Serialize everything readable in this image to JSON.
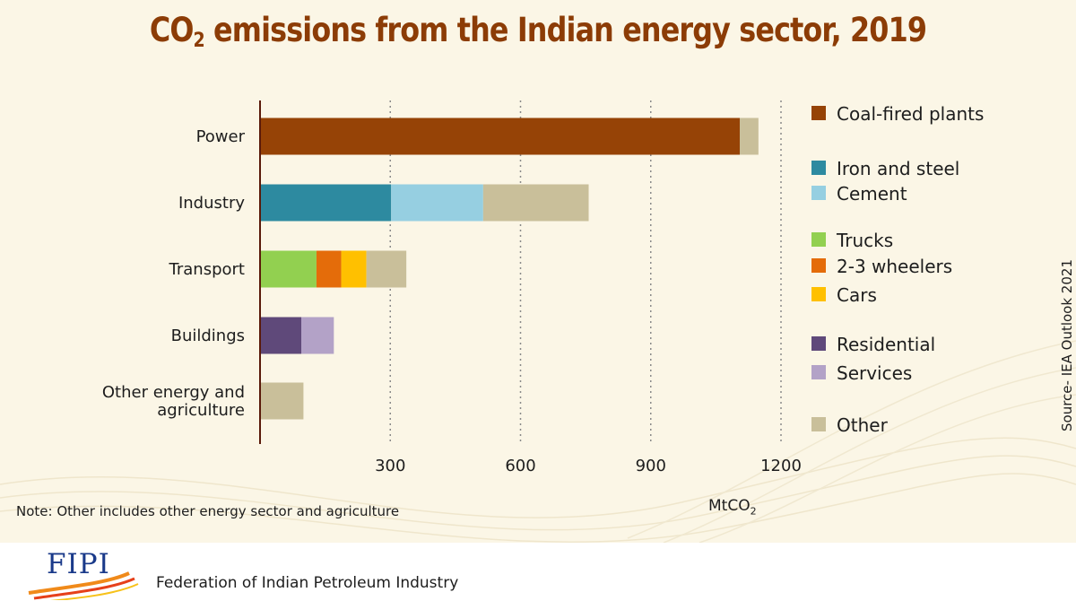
{
  "header": {
    "title_prefix": "CO",
    "title_sub": "2",
    "title_suffix": " emissions from the Indian energy sector, 2019"
  },
  "chart_data": {
    "type": "bar",
    "orientation": "horizontal",
    "stacked": true,
    "categories": [
      "Power",
      "Industry",
      "Transport",
      "Buildings",
      "Other energy and agriculture"
    ],
    "xticks": [
      300,
      600,
      900,
      1200
    ],
    "xlim": [
      0,
      1200
    ],
    "xlabel_prefix": "MtCO",
    "xlabel_sub": "2",
    "grid": "vertical dotted",
    "legend_position": "right",
    "series": [
      {
        "name": "Coal-fired plants",
        "color": "#964306",
        "values": [
          1105,
          0,
          0,
          0,
          0
        ]
      },
      {
        "name": "Iron and steel",
        "color": "#2d8aa0",
        "values": [
          0,
          302,
          0,
          0,
          0
        ]
      },
      {
        "name": "Cement",
        "color": "#96cfe1",
        "values": [
          0,
          212,
          0,
          0,
          0
        ]
      },
      {
        "name": "Trucks",
        "color": "#92d050",
        "values": [
          0,
          0,
          130,
          0,
          0
        ]
      },
      {
        "name": "2-3 wheelers",
        "color": "#e46c0a",
        "values": [
          0,
          0,
          57,
          0,
          0
        ]
      },
      {
        "name": "Cars",
        "color": "#ffc000",
        "values": [
          0,
          0,
          58,
          0,
          0
        ]
      },
      {
        "name": "Residential",
        "color": "#5f497a",
        "values": [
          0,
          0,
          0,
          95,
          0
        ]
      },
      {
        "name": "Services",
        "color": "#b3a2c7",
        "values": [
          0,
          0,
          0,
          75,
          0
        ]
      },
      {
        "name": "Other",
        "color": "#c9bf9a",
        "values": [
          43,
          243,
          92,
          0,
          100
        ]
      }
    ]
  },
  "note": "Note: Other includes other energy sector and agriculture",
  "source": "Source- IEA Outlook 2021",
  "footer": {
    "logo_text": "FIPI",
    "org_name": "Federation of Indian Petroleum Industry"
  },
  "colors": {
    "title": "#8c3c06",
    "background": "#fbf6e6",
    "axis": "#5a1a0a"
  }
}
